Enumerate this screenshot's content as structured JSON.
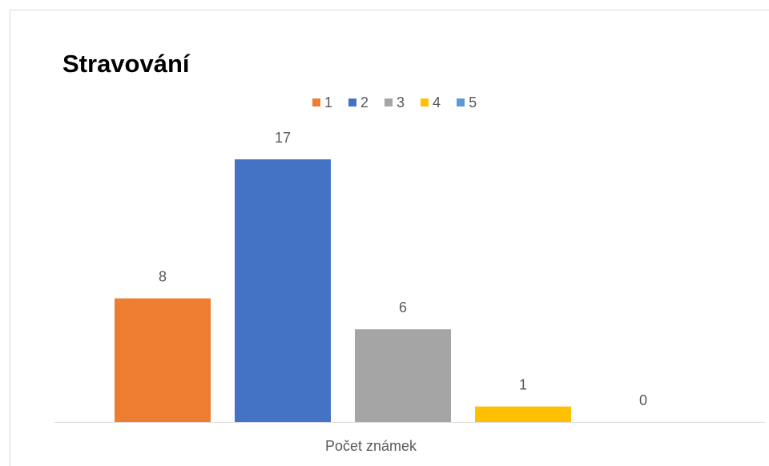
{
  "chart_data": {
    "type": "bar",
    "title": "Stravování",
    "categories": [
      "Počet známek"
    ],
    "series": [
      {
        "name": "1",
        "color": "#ed7d31",
        "values": [
          8
        ]
      },
      {
        "name": "2",
        "color": "#4472c4",
        "values": [
          17
        ]
      },
      {
        "name": "3",
        "color": "#a5a5a5",
        "values": [
          6
        ]
      },
      {
        "name": "4",
        "color": "#ffc000",
        "values": [
          1
        ]
      },
      {
        "name": "5",
        "color": "#5b9bd5",
        "values": [
          0
        ]
      }
    ],
    "legend": "top"
  }
}
